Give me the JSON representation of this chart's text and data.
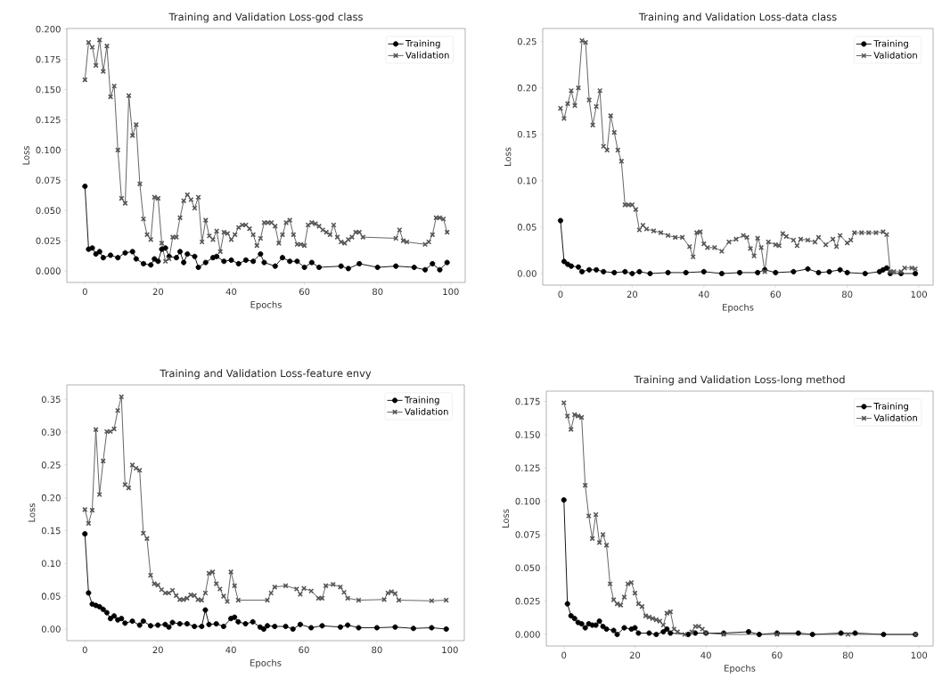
{
  "chart_data": [
    {
      "type": "line",
      "title": "Training and Validation Loss-god class",
      "xlabel": "Epochs",
      "ylabel": "Loss",
      "xlim": [
        -4.95,
        103.95
      ],
      "ylim": [
        -0.0095,
        0.2005
      ],
      "xticks": [
        0,
        20,
        40,
        60,
        80,
        100
      ],
      "yticks": [
        {
          "value": 0,
          "label": "0.000"
        },
        {
          "value": 0.025,
          "label": "0.025"
        },
        {
          "value": 0.05,
          "label": "0.050"
        },
        {
          "value": 0.075,
          "label": "0.075"
        },
        {
          "value": 0.1,
          "label": "0.100"
        },
        {
          "value": 0.125,
          "label": "0.125"
        },
        {
          "value": 0.15,
          "label": "0.150"
        },
        {
          "value": 0.175,
          "label": "0.175"
        },
        {
          "value": 0.2,
          "label": "0.200"
        }
      ],
      "legend": "top right",
      "grid": false,
      "series": [
        {
          "name": "Training",
          "color": "#000000",
          "marker": "circle",
          "x": [
            0,
            1,
            2,
            3,
            4,
            5,
            7,
            9,
            11,
            13,
            14,
            16,
            18,
            19,
            20,
            21,
            22,
            23,
            25,
            26,
            27,
            28,
            30,
            31,
            33,
            35,
            36,
            38,
            40,
            42,
            44,
            46,
            48,
            49,
            52,
            54,
            56,
            58,
            60,
            62,
            64,
            70,
            72,
            75,
            80,
            85,
            90,
            93,
            95,
            97,
            99
          ],
          "values": [
            0.07,
            0.018,
            0.019,
            0.014,
            0.016,
            0.011,
            0.013,
            0.011,
            0.015,
            0.016,
            0.01,
            0.006,
            0.005,
            0.01,
            0.008,
            0.018,
            0.019,
            0.012,
            0.011,
            0.016,
            0.007,
            0.014,
            0.012,
            0.003,
            0.007,
            0.011,
            0.012,
            0.008,
            0.009,
            0.006,
            0.009,
            0.008,
            0.014,
            0.007,
            0.004,
            0.011,
            0.008,
            0.008,
            0.003,
            0.007,
            0.003,
            0.004,
            0.002,
            0.006,
            0.003,
            0.004,
            0.003,
            0.001,
            0.006,
            0.001,
            0.007
          ]
        },
        {
          "name": "Validation",
          "color": "#555555",
          "marker": "cross",
          "x": [
            0,
            1,
            2,
            3,
            4,
            5,
            6,
            7,
            8,
            9,
            10,
            11,
            12,
            13,
            14,
            15,
            16,
            17,
            18,
            19,
            20,
            21,
            22,
            23,
            24,
            25,
            26,
            27,
            28,
            29,
            30,
            31,
            32,
            33,
            34,
            35,
            36,
            37,
            38,
            39,
            40,
            41,
            42,
            43,
            44,
            45,
            46,
            47,
            48,
            49,
            50,
            51,
            52,
            53,
            54,
            55,
            56,
            57,
            58,
            59,
            60,
            61,
            62,
            63,
            64,
            65,
            66,
            67,
            68,
            69,
            70,
            71,
            72,
            73,
            74,
            75,
            76,
            85,
            86,
            87,
            88,
            93,
            94,
            95,
            96,
            97,
            98,
            99
          ],
          "values": [
            0.158,
            0.189,
            0.185,
            0.17,
            0.191,
            0.165,
            0.186,
            0.144,
            0.153,
            0.1,
            0.06,
            0.056,
            0.145,
            0.112,
            0.121,
            0.072,
            0.043,
            0.03,
            0.026,
            0.061,
            0.06,
            0.023,
            0.008,
            0.01,
            0.028,
            0.028,
            0.044,
            0.058,
            0.063,
            0.059,
            0.052,
            0.061,
            0.024,
            0.042,
            0.029,
            0.026,
            0.033,
            0.016,
            0.032,
            0.031,
            0.026,
            0.03,
            0.036,
            0.038,
            0.038,
            0.035,
            0.03,
            0.021,
            0.027,
            0.04,
            0.04,
            0.04,
            0.037,
            0.023,
            0.03,
            0.04,
            0.042,
            0.03,
            0.022,
            0.022,
            0.021,
            0.038,
            0.04,
            0.039,
            0.037,
            0.034,
            0.032,
            0.03,
            0.038,
            0.028,
            0.024,
            0.023,
            0.026,
            0.028,
            0.032,
            0.032,
            0.028,
            0.027,
            0.034,
            0.025,
            0.024,
            0.022,
            0.024,
            0.03,
            0.044,
            0.044,
            0.043,
            0.032
          ]
        }
      ]
    },
    {
      "type": "line",
      "title": "Training and Validation Loss-data class",
      "xlabel": "Epochs",
      "ylabel": "Loss",
      "xlim": [
        -4.95,
        103.95
      ],
      "ylim": [
        -0.0125,
        0.264
      ],
      "xticks": [
        0,
        20,
        40,
        60,
        80,
        100
      ],
      "yticks": [
        {
          "value": 0,
          "label": "0.00"
        },
        {
          "value": 0.05,
          "label": "0.05"
        },
        {
          "value": 0.1,
          "label": "0.10"
        },
        {
          "value": 0.15,
          "label": "0.15"
        },
        {
          "value": 0.2,
          "label": "0.20"
        },
        {
          "value": 0.25,
          "label": "0.25"
        }
      ],
      "legend": "top right",
      "grid": false,
      "series": [
        {
          "name": "Training",
          "color": "#000000",
          "marker": "circle",
          "x": [
            0,
            1,
            2,
            3,
            5,
            6,
            8,
            10,
            12,
            15,
            18,
            20,
            22,
            25,
            30,
            35,
            40,
            45,
            50,
            55,
            57,
            60,
            65,
            69,
            72,
            75,
            78,
            80,
            85,
            89,
            90,
            91,
            92,
            95,
            99
          ],
          "values": [
            0.057,
            0.013,
            0.01,
            0.008,
            0.007,
            0.002,
            0.004,
            0.004,
            0.002,
            0.001,
            0.002,
            0.0,
            0.002,
            0.0,
            0.001,
            0.001,
            0.002,
            0.0,
            0.001,
            0.001,
            0.004,
            0.001,
            0.002,
            0.005,
            0.001,
            0.002,
            0.004,
            0.001,
            0.0,
            0.002,
            0.004,
            0.006,
            0.0,
            0.0,
            0.0
          ]
        },
        {
          "name": "Validation",
          "color": "#555555",
          "marker": "cross",
          "x": [
            0,
            1,
            2,
            3,
            4,
            5,
            6,
            7,
            8,
            9,
            10,
            11,
            12,
            13,
            14,
            15,
            16,
            17,
            18,
            19,
            20,
            21,
            22,
            23,
            24,
            26,
            28,
            30,
            32,
            34,
            36,
            37,
            38,
            39,
            40,
            41,
            43,
            45,
            47,
            49,
            51,
            52,
            53,
            54,
            55,
            56,
            57,
            58,
            60,
            61,
            62,
            63,
            65,
            66,
            67,
            69,
            71,
            72,
            74,
            76,
            77,
            78,
            80,
            81,
            82,
            84,
            86,
            88,
            90,
            91,
            92,
            93,
            95,
            96,
            98,
            99
          ],
          "values": [
            0.178,
            0.167,
            0.183,
            0.197,
            0.181,
            0.2,
            0.251,
            0.249,
            0.187,
            0.16,
            0.18,
            0.197,
            0.137,
            0.133,
            0.17,
            0.152,
            0.133,
            0.121,
            0.074,
            0.074,
            0.074,
            0.069,
            0.047,
            0.052,
            0.048,
            0.046,
            0.044,
            0.041,
            0.039,
            0.039,
            0.029,
            0.018,
            0.044,
            0.045,
            0.032,
            0.028,
            0.028,
            0.024,
            0.034,
            0.037,
            0.041,
            0.039,
            0.027,
            0.019,
            0.038,
            0.028,
            0.002,
            0.034,
            0.031,
            0.03,
            0.043,
            0.04,
            0.036,
            0.03,
            0.037,
            0.036,
            0.034,
            0.039,
            0.031,
            0.037,
            0.029,
            0.041,
            0.033,
            0.036,
            0.044,
            0.044,
            0.044,
            0.044,
            0.045,
            0.042,
            0.002,
            0.002,
            0.002,
            0.006,
            0.006,
            0.005
          ]
        }
      ]
    },
    {
      "type": "line",
      "title": "Training and Validation Loss-feature envy",
      "xlabel": "Epochs",
      "ylabel": "Loss",
      "xlim": [
        -4.95,
        103.95
      ],
      "ylim": [
        -0.0177,
        0.372
      ],
      "xticks": [
        0,
        20,
        40,
        60,
        80,
        100
      ],
      "yticks": [
        {
          "value": 0,
          "label": "0.00"
        },
        {
          "value": 0.05,
          "label": "0.05"
        },
        {
          "value": 0.1,
          "label": "0.10"
        },
        {
          "value": 0.15,
          "label": "0.15"
        },
        {
          "value": 0.2,
          "label": "0.20"
        },
        {
          "value": 0.25,
          "label": "0.25"
        },
        {
          "value": 0.3,
          "label": "0.30"
        },
        {
          "value": 0.35,
          "label": "0.35"
        }
      ],
      "legend": "top right",
      "grid": false,
      "series": [
        {
          "name": "Training",
          "color": "#000000",
          "marker": "circle",
          "x": [
            0,
            1,
            2,
            3,
            4,
            5,
            6,
            7,
            8,
            9,
            10,
            11,
            13,
            15,
            16,
            18,
            20,
            22,
            23,
            24,
            26,
            28,
            30,
            32,
            33,
            34,
            36,
            38,
            40,
            41,
            42,
            44,
            46,
            48,
            49,
            50,
            52,
            55,
            57,
            59,
            62,
            65,
            70,
            72,
            75,
            80,
            85,
            90,
            95,
            99
          ],
          "values": [
            0.145,
            0.055,
            0.038,
            0.036,
            0.034,
            0.03,
            0.025,
            0.016,
            0.02,
            0.014,
            0.016,
            0.009,
            0.012,
            0.006,
            0.012,
            0.005,
            0.006,
            0.007,
            0.003,
            0.01,
            0.008,
            0.008,
            0.004,
            0.004,
            0.029,
            0.007,
            0.008,
            0.004,
            0.016,
            0.018,
            0.011,
            0.008,
            0.011,
            0.003,
            0.0,
            0.005,
            0.004,
            0.004,
            0.0,
            0.007,
            0.002,
            0.005,
            0.003,
            0.006,
            0.002,
            0.002,
            0.003,
            0.001,
            0.002,
            0.0
          ]
        },
        {
          "name": "Validation",
          "color": "#555555",
          "marker": "cross",
          "x": [
            0,
            1,
            2,
            3,
            4,
            5,
            6,
            7,
            8,
            9,
            10,
            11,
            12,
            13,
            14,
            15,
            16,
            17,
            18,
            19,
            20,
            21,
            22,
            23,
            24,
            25,
            26,
            27,
            28,
            29,
            30,
            31,
            32,
            33,
            34,
            35,
            36,
            37,
            38,
            39,
            40,
            41,
            42,
            50,
            51,
            52,
            55,
            58,
            59,
            60,
            62,
            64,
            65,
            66,
            68,
            70,
            71,
            72,
            75,
            82,
            83,
            84,
            85,
            86,
            95,
            99
          ],
          "values": [
            0.182,
            0.161,
            0.181,
            0.304,
            0.205,
            0.256,
            0.301,
            0.301,
            0.305,
            0.333,
            0.354,
            0.22,
            0.215,
            0.25,
            0.245,
            0.242,
            0.146,
            0.138,
            0.082,
            0.069,
            0.067,
            0.06,
            0.055,
            0.055,
            0.059,
            0.051,
            0.045,
            0.045,
            0.047,
            0.052,
            0.051,
            0.045,
            0.044,
            0.055,
            0.085,
            0.087,
            0.069,
            0.061,
            0.05,
            0.042,
            0.087,
            0.066,
            0.044,
            0.044,
            0.055,
            0.064,
            0.066,
            0.061,
            0.053,
            0.062,
            0.058,
            0.047,
            0.047,
            0.066,
            0.068,
            0.064,
            0.056,
            0.047,
            0.044,
            0.045,
            0.055,
            0.057,
            0.054,
            0.044,
            0.043,
            0.044
          ]
        }
      ]
    },
    {
      "type": "line",
      "title": "Training and Validation Loss-long method",
      "xlabel": "Epochs",
      "ylabel": "Loss",
      "xlim": [
        -4.95,
        103.95
      ],
      "ylim": [
        -0.0087,
        0.1827
      ],
      "xticks": [
        0,
        20,
        40,
        60,
        80,
        100
      ],
      "yticks": [
        {
          "value": 0,
          "label": "0.000"
        },
        {
          "value": 0.025,
          "label": "0.025"
        },
        {
          "value": 0.05,
          "label": "0.050"
        },
        {
          "value": 0.075,
          "label": "0.075"
        },
        {
          "value": 0.1,
          "label": "0.100"
        },
        {
          "value": 0.125,
          "label": "0.125"
        },
        {
          "value": 0.15,
          "label": "0.150"
        },
        {
          "value": 0.175,
          "label": "0.175"
        }
      ],
      "legend": "top right",
      "grid": false,
      "series": [
        {
          "name": "Training",
          "color": "#000000",
          "marker": "circle",
          "x": [
            0,
            1,
            2,
            3,
            4,
            5,
            6,
            7,
            8,
            9,
            10,
            11,
            12,
            14,
            15,
            17,
            19,
            20,
            21,
            24,
            26,
            28,
            29,
            30,
            35,
            37,
            40,
            45,
            52,
            55,
            60,
            66,
            70,
            78,
            82,
            90,
            99
          ],
          "values": [
            0.101,
            0.023,
            0.014,
            0.012,
            0.009,
            0.008,
            0.005,
            0.008,
            0.007,
            0.007,
            0.01,
            0.006,
            0.004,
            0.003,
            0.0,
            0.005,
            0.004,
            0.005,
            0.001,
            0.001,
            0.0,
            0.002,
            0.004,
            0.001,
            0.0,
            0.001,
            0.001,
            0.001,
            0.002,
            0.0,
            0.001,
            0.001,
            0.0,
            0.001,
            0.001,
            0.0,
            0.0
          ]
        },
        {
          "name": "Validation",
          "color": "#555555",
          "marker": "cross",
          "x": [
            0,
            1,
            2,
            3,
            4,
            5,
            6,
            7,
            8,
            9,
            10,
            11,
            12,
            13,
            14,
            15,
            16,
            17,
            18,
            19,
            20,
            21,
            22,
            23,
            24,
            25,
            26,
            27,
            28,
            29,
            30,
            31,
            32,
            34,
            36,
            37,
            38,
            39,
            40,
            45,
            60,
            80,
            99
          ],
          "values": [
            0.174,
            0.164,
            0.154,
            0.165,
            0.164,
            0.163,
            0.112,
            0.089,
            0.072,
            0.09,
            0.069,
            0.075,
            0.067,
            0.038,
            0.026,
            0.023,
            0.022,
            0.028,
            0.038,
            0.039,
            0.031,
            0.023,
            0.021,
            0.014,
            0.013,
            0.012,
            0.011,
            0.01,
            0.007,
            0.016,
            0.017,
            0.004,
            0.002,
            0.0,
            0.002,
            0.006,
            0.006,
            0.004,
            0.001,
            0.0,
            0.0,
            0.0,
            0.0
          ]
        }
      ]
    }
  ]
}
